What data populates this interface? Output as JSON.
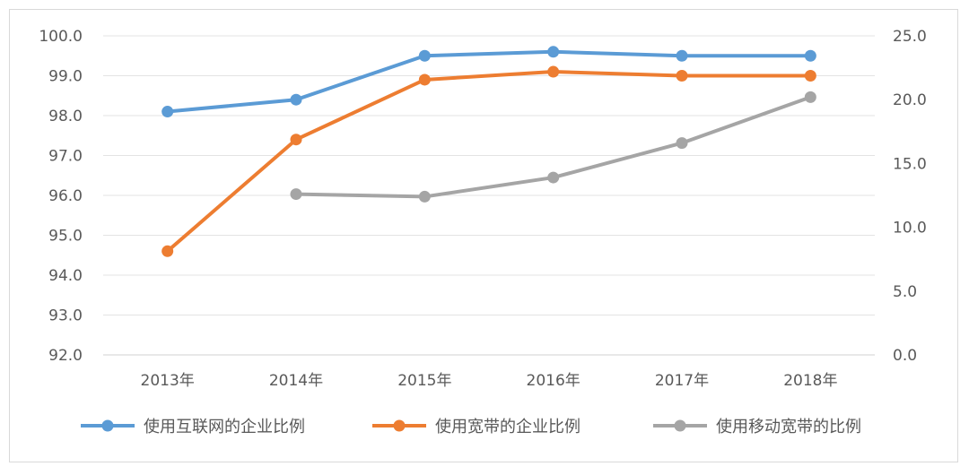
{
  "chart_data": {
    "type": "line",
    "title": "",
    "categories": [
      "2013年",
      "2014年",
      "2015年",
      "2016年",
      "2017年",
      "2018年"
    ],
    "y_left": {
      "min": 92.0,
      "max": 100.0,
      "step": 1.0,
      "ticks": [
        "92.0",
        "93.0",
        "94.0",
        "95.0",
        "96.0",
        "97.0",
        "98.0",
        "99.0",
        "100.0"
      ]
    },
    "y_right": {
      "min": 0.0,
      "max": 25.0,
      "step": 5.0,
      "ticks": [
        "0.0",
        "5.0",
        "10.0",
        "15.0",
        "20.0",
        "25.0"
      ]
    },
    "grid": true,
    "legend_position": "bottom",
    "series": [
      {
        "name": "使用互联网的企业比例",
        "axis": "left",
        "color": "#5b9bd5",
        "values": [
          98.1,
          98.4,
          99.5,
          99.6,
          99.5,
          99.5
        ]
      },
      {
        "name": "使用宽带的企业比例",
        "axis": "left",
        "color": "#ed7d31",
        "values": [
          94.6,
          97.4,
          98.9,
          99.1,
          99.0,
          99.0
        ]
      },
      {
        "name": "使用移动宽带的比例",
        "axis": "right",
        "color": "#a5a5a5",
        "values": [
          null,
          12.6,
          12.4,
          13.9,
          16.6,
          20.2
        ]
      }
    ]
  }
}
